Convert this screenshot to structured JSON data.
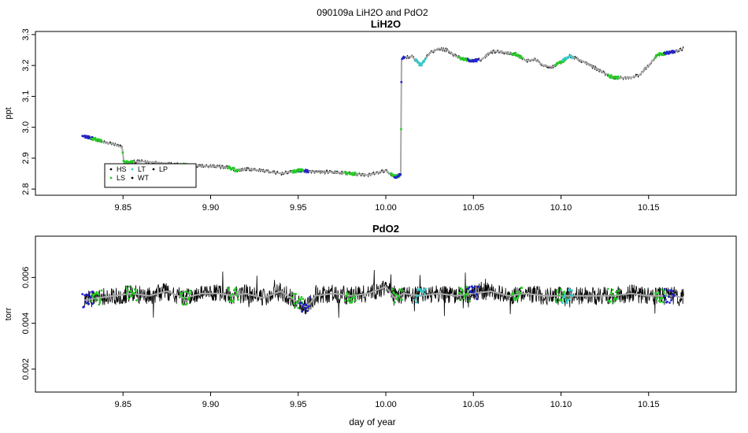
{
  "figure": {
    "title": "090109a   LiH2O and PdO2",
    "xlabel": "day of year"
  },
  "colors": {
    "HS": "#000000",
    "LS": "#22cc22",
    "LT": "#33cccc",
    "WT": "#000000",
    "LP": "#000000",
    "blue_marks": "#2222cc",
    "raw_trace": "#000000",
    "smooth_trace": "#aaaaaa"
  },
  "chart_data": [
    {
      "type": "line",
      "title": "LiH2O",
      "ylabel": "ppt",
      "xlim": [
        9.8,
        10.2
      ],
      "ylim": [
        2.78,
        3.31
      ],
      "x_ticks": [
        "9.85",
        "9.90",
        "9.95",
        "10.00",
        "10.05",
        "10.10",
        "10.15"
      ],
      "x_tick_values": [
        9.85,
        9.9,
        9.95,
        10.0,
        10.05,
        10.1,
        10.15
      ],
      "y_ticks": [
        "2.8",
        "2.9",
        "3.0",
        "3.1",
        "3.2",
        "3.3"
      ],
      "y_tick_values": [
        2.8,
        2.9,
        3.0,
        3.1,
        3.2,
        3.3
      ],
      "legend": {
        "position": "bottom-left",
        "entries": [
          {
            "label": "HS",
            "color": "#000000"
          },
          {
            "label": "LS",
            "color": "#22cc22"
          },
          {
            "label": "LT",
            "color": "#33cccc"
          },
          {
            "label": "WT",
            "color": "#000000"
          },
          {
            "label": "LP",
            "color": "#000000"
          }
        ]
      },
      "noise": 0.006,
      "series": [
        {
          "name": "LiH2O",
          "x": [
            9.828,
            9.835,
            9.84,
            9.845,
            9.8495,
            9.8505,
            9.86,
            9.87,
            9.88,
            9.89,
            9.9,
            9.91,
            9.915,
            9.92,
            9.93,
            9.94,
            9.95,
            9.96,
            9.97,
            9.98,
            9.99,
            10.0,
            10.005,
            10.0085,
            10.009,
            10.01,
            10.015,
            10.02,
            10.025,
            10.03,
            10.035,
            10.04,
            10.045,
            10.05,
            10.055,
            10.06,
            10.065,
            10.07,
            10.075,
            10.08,
            10.085,
            10.09,
            10.095,
            10.1,
            10.105,
            10.11,
            10.115,
            10.12,
            10.125,
            10.13,
            10.135,
            10.14,
            10.145,
            10.15,
            10.155,
            10.16,
            10.165,
            10.17
          ],
          "y": [
            2.97,
            2.96,
            2.95,
            2.945,
            2.935,
            2.885,
            2.89,
            2.885,
            2.88,
            2.875,
            2.875,
            2.87,
            2.86,
            2.865,
            2.86,
            2.85,
            2.86,
            2.855,
            2.855,
            2.85,
            2.845,
            2.86,
            2.84,
            2.845,
            3.22,
            3.225,
            3.23,
            3.2,
            3.24,
            3.255,
            3.25,
            3.23,
            3.22,
            3.215,
            3.22,
            3.245,
            3.245,
            3.24,
            3.235,
            3.215,
            3.22,
            3.2,
            3.195,
            3.21,
            3.23,
            3.22,
            3.205,
            3.19,
            3.175,
            3.16,
            3.16,
            3.16,
            3.17,
            3.2,
            3.235,
            3.24,
            3.245,
            3.255
          ]
        }
      ]
    },
    {
      "type": "line",
      "title": "PdO2",
      "ylabel": "torr",
      "xlim": [
        9.8,
        10.2
      ],
      "ylim": [
        0.001,
        0.0078
      ],
      "x_ticks": [
        "9.85",
        "9.90",
        "9.95",
        "10.00",
        "10.05",
        "10.10",
        "10.15"
      ],
      "x_tick_values": [
        9.85,
        9.9,
        9.95,
        10.0,
        10.05,
        10.1,
        10.15
      ],
      "y_ticks": [
        "0.002",
        "0.004",
        "0.006"
      ],
      "y_tick_values": [
        0.002,
        0.004,
        0.006
      ],
      "noise": 0.0004,
      "series": [
        {
          "name": "PdO2",
          "x": [
            9.828,
            9.835,
            9.845,
            9.855,
            9.865,
            9.875,
            9.885,
            9.895,
            9.905,
            9.913,
            9.92,
            9.93,
            9.94,
            9.95,
            9.955,
            9.96,
            9.97,
            9.98,
            9.99,
            10.0,
            10.005,
            10.01,
            10.02,
            10.03,
            10.04,
            10.05,
            10.06,
            10.07,
            10.08,
            10.09,
            10.1,
            10.11,
            10.12,
            10.13,
            10.14,
            10.15,
            10.16,
            10.165,
            10.17
          ],
          "y": [
            0.005,
            0.0051,
            0.0052,
            0.0053,
            0.0052,
            0.0054,
            0.0051,
            0.0053,
            0.0053,
            0.0052,
            0.0053,
            0.0051,
            0.0054,
            0.0049,
            0.0047,
            0.0052,
            0.0053,
            0.0052,
            0.0053,
            0.0056,
            0.0051,
            0.0053,
            0.0052,
            0.0053,
            0.0052,
            0.0053,
            0.0054,
            0.0052,
            0.0053,
            0.0052,
            0.0052,
            0.0052,
            0.0052,
            0.0052,
            0.0053,
            0.0052,
            0.0052,
            0.0052,
            0.0051
          ]
        }
      ]
    }
  ]
}
